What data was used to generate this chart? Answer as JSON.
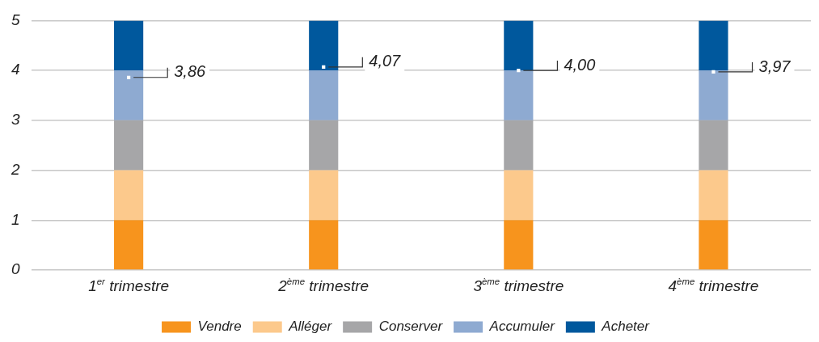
{
  "chart_data": {
    "type": "bar",
    "stacked": true,
    "categories": [
      "1$^{er}$ trimestre",
      "2$^{ème}$ trimestre",
      "3$^{ème}$ trimestre",
      "4$^{ème}$ trimestre"
    ],
    "series": [
      {
        "name": "Vendre",
        "color": "#f7941d",
        "values": [
          1,
          1,
          1,
          1
        ]
      },
      {
        "name": "Alléger",
        "color": "#fcc98c",
        "values": [
          1,
          1,
          1,
          1
        ]
      },
      {
        "name": "Conserver",
        "color": "#a6a6a8",
        "values": [
          1,
          1,
          1,
          1
        ]
      },
      {
        "name": "Accumuler",
        "color": "#8eaad1",
        "values": [
          1,
          1,
          1,
          1
        ]
      },
      {
        "name": "Acheter",
        "color": "#00589d",
        "values": [
          1,
          1,
          1,
          1
        ]
      },
      {
        "type": "scatter",
        "color": "#ffffff",
        "x": [
          "1$^{er}$ trimestre",
          "2$^{ème}$ trimestre",
          "3$^{ème}$ trimestre",
          "4$^{ème}$ trimestre"
        ],
        "values": [
          3.86,
          4.07,
          4.0,
          3.97
        ],
        "value_labels": [
          "3,86",
          "4,07",
          "4,00",
          "3,97"
        ]
      }
    ],
    "ylim": [
      0,
      5
    ],
    "yticks": [
      0,
      1,
      2,
      3,
      4,
      5
    ],
    "grid": "y",
    "legend": "bottom",
    "marker": "square"
  }
}
